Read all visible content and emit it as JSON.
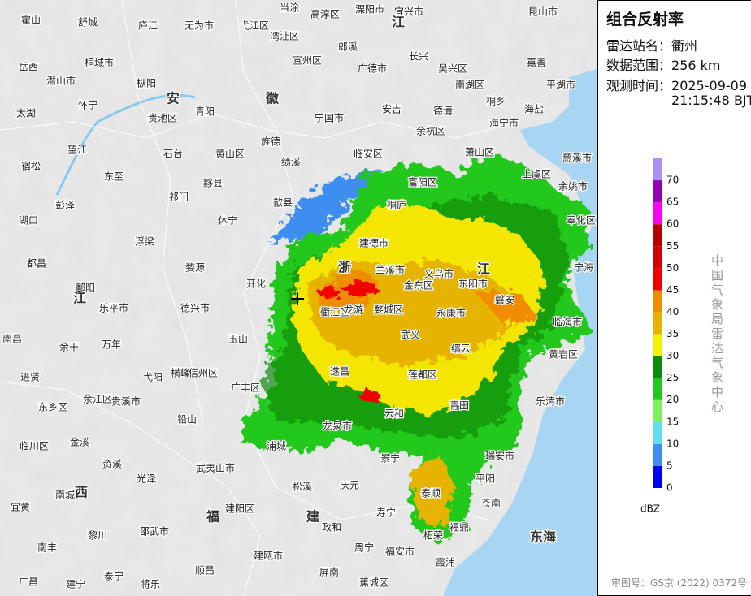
{
  "panel": {
    "title": "组合反射率",
    "station_label": "雷达站名：",
    "station": "衢州",
    "range_label": "数据范围：",
    "range": "256 km",
    "time_label": "观测时间：",
    "time_date": "2025-09-09",
    "time_clock": "21:15:48 BJT",
    "legend": {
      "unit": "dBZ",
      "ticks": [
        0,
        5,
        10,
        15,
        20,
        25,
        30,
        35,
        40,
        45,
        50,
        55,
        60,
        65,
        70
      ],
      "colors": [
        "#0000f6",
        "#3c8ef0",
        "#5fdcf0",
        "#7cf05a",
        "#22c81e",
        "#0c8c0c",
        "#f4f000",
        "#e6b400",
        "#f08c00",
        "#f00000",
        "#d20000",
        "#b40000",
        "#ff00f0",
        "#9600b4",
        "#ad90f0"
      ]
    },
    "credit": "中国气象局雷达气象中心",
    "approval": "审图号：GS京 (2022) 0372号"
  },
  "map": {
    "labels": [
      "霍山",
      "舒城",
      "庐江",
      "无为市",
      "弋江区",
      "湾沚区",
      "当涂",
      "高淳区",
      "溧阳市",
      "宜兴市",
      "昆山市",
      "岳西",
      "桐城市",
      "潜山市",
      "枞阳",
      "郎溪",
      "宣州区",
      "广德市",
      "长兴",
      "吴兴区",
      "南湖区",
      "嘉善",
      "平湖市",
      "太湖",
      "怀宁",
      "贵池区",
      "青阳",
      "宁国市",
      "安吉",
      "德清",
      "桐乡",
      "海盐",
      "海宁市",
      "余杭区",
      "宿松",
      "望江",
      "石台",
      "黄山区",
      "旌德",
      "绩溪",
      "临安区",
      "萧山区",
      "慈溪市",
      "东至",
      "彭泽",
      "祁门",
      "黟县",
      "歙县",
      "富阳区",
      "上虞区",
      "余姚市",
      "湖口",
      "休宁",
      "桐庐",
      "奉化区",
      "都昌",
      "浮梁",
      "婺源",
      "建德市",
      "兰溪市",
      "义乌市",
      "宁海",
      "鄱阳",
      "开化",
      "衢江区",
      "龙游",
      "婺城区",
      "金东区",
      "东阳市",
      "磐安",
      "乐平市",
      "德兴市",
      "永康市",
      "武义",
      "临海市",
      "南昌",
      "余干",
      "万年",
      "玉山",
      "缙云",
      "黄岩区",
      "进贤",
      "弋阳",
      "横峰",
      "信州区",
      "遂昌",
      "莲都区",
      "贵溪市",
      "余江区",
      "广丰区",
      "东乡区",
      "铅山",
      "云和",
      "青田",
      "乐清市",
      "临川区",
      "金溪",
      "龙泉市",
      "浦城",
      "景宁",
      "瑞安市",
      "资溪",
      "光泽",
      "武夷山市",
      "松溪",
      "庆元",
      "平阳",
      "南城",
      "宜黄",
      "建阳区",
      "寿宁",
      "泰顺",
      "苍南",
      "黎川",
      "邵武市",
      "政和",
      "福鼎",
      "柘荣",
      "南丰",
      "周宁",
      "福安市",
      "建瓯市",
      "霞浦",
      "广昌",
      "建宁",
      "泰宁",
      "将乐",
      "顺昌",
      "屏南",
      "蕉城区",
      "安",
      "徽",
      "江",
      "江",
      "浙",
      "江",
      "福",
      "建",
      "西",
      "东海"
    ]
  }
}
